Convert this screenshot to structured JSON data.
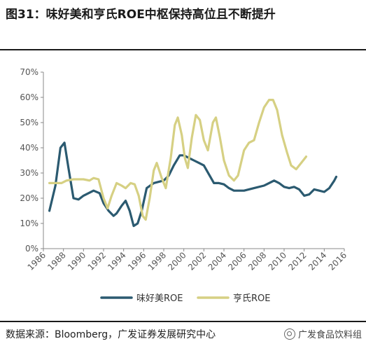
{
  "figure": {
    "title": "图31：味好美和亨氏ROE中枢保持高位且不断提升",
    "source": "数据来源：Bloomberg，广发证券发展研究中心",
    "watermark": "广发食品饮料组",
    "watermark_icon": "wechat-icon"
  },
  "chart_data": {
    "type": "line",
    "x_ticks": [
      "1986",
      "1988",
      "1990",
      "1992",
      "1994",
      "1996",
      "1998",
      "2000",
      "2002",
      "2004",
      "2006",
      "2008",
      "2010",
      "2012",
      "2014",
      "2016"
    ],
    "y_ticks": [
      "0%",
      "10%",
      "20%",
      "30%",
      "40%",
      "50%",
      "60%",
      "70%"
    ],
    "xlim": [
      1986,
      2016
    ],
    "ylim": [
      0,
      70
    ],
    "grid": false,
    "legend_position": "bottom",
    "series": [
      {
        "name": "味好美ROE",
        "color": "#2b5a70",
        "points": [
          [
            1986.6,
            15
          ],
          [
            1987.2,
            25
          ],
          [
            1987.7,
            40
          ],
          [
            1988.1,
            42
          ],
          [
            1988.5,
            32
          ],
          [
            1989.0,
            20
          ],
          [
            1989.5,
            19.5
          ],
          [
            1990.0,
            21
          ],
          [
            1991.0,
            23
          ],
          [
            1991.6,
            22
          ],
          [
            1992.0,
            18
          ],
          [
            1992.5,
            15
          ],
          [
            1993.0,
            13
          ],
          [
            1993.3,
            14
          ],
          [
            1993.8,
            17
          ],
          [
            1994.2,
            19
          ],
          [
            1994.6,
            15
          ],
          [
            1995.0,
            9
          ],
          [
            1995.4,
            10
          ],
          [
            1995.8,
            15
          ],
          [
            1996.3,
            24
          ],
          [
            1997.0,
            26
          ],
          [
            1997.5,
            26.5
          ],
          [
            1998.0,
            27
          ],
          [
            1998.5,
            29
          ],
          [
            1999.0,
            33
          ],
          [
            1999.6,
            37
          ],
          [
            2000.0,
            37
          ],
          [
            2000.5,
            36
          ],
          [
            2001.0,
            35
          ],
          [
            2001.5,
            34
          ],
          [
            2002.0,
            33
          ],
          [
            2002.5,
            29.5
          ],
          [
            2003.0,
            26
          ],
          [
            2003.5,
            26
          ],
          [
            2004.0,
            25.5
          ],
          [
            2004.5,
            24
          ],
          [
            2005.0,
            23
          ],
          [
            2006.0,
            23
          ],
          [
            2007.0,
            24
          ],
          [
            2008.0,
            25
          ],
          [
            2009.0,
            27
          ],
          [
            2009.5,
            26
          ],
          [
            2010.0,
            24.5
          ],
          [
            2010.5,
            24
          ],
          [
            2011.0,
            24.5
          ],
          [
            2011.5,
            23.5
          ],
          [
            2012.0,
            21
          ],
          [
            2012.5,
            21.5
          ],
          [
            2013.0,
            23.5
          ],
          [
            2013.5,
            23
          ],
          [
            2014.0,
            22.5
          ],
          [
            2014.5,
            24
          ],
          [
            2015.0,
            27
          ],
          [
            2015.2,
            28.5
          ]
        ]
      },
      {
        "name": "亨氏ROE",
        "color": "#d6d083",
        "points": [
          [
            1986.6,
            26
          ],
          [
            1987.2,
            26
          ],
          [
            1987.8,
            26
          ],
          [
            1988.3,
            27
          ],
          [
            1989.0,
            27.5
          ],
          [
            1990.0,
            27.5
          ],
          [
            1990.6,
            27
          ],
          [
            1991.0,
            28
          ],
          [
            1991.5,
            27.5
          ],
          [
            1992.0,
            20
          ],
          [
            1992.4,
            16
          ],
          [
            1992.8,
            21
          ],
          [
            1993.3,
            26
          ],
          [
            1993.8,
            25
          ],
          [
            1994.2,
            24
          ],
          [
            1994.7,
            26
          ],
          [
            1995.1,
            25.5
          ],
          [
            1995.5,
            21
          ],
          [
            1995.9,
            13
          ],
          [
            1996.2,
            11.5
          ],
          [
            1996.6,
            20
          ],
          [
            1997.0,
            31
          ],
          [
            1997.3,
            34
          ],
          [
            1997.8,
            28
          ],
          [
            1998.2,
            24
          ],
          [
            1998.7,
            36
          ],
          [
            1999.1,
            49
          ],
          [
            1999.4,
            52
          ],
          [
            1999.8,
            45
          ],
          [
            2000.1,
            36
          ],
          [
            2000.4,
            32
          ],
          [
            2000.8,
            44
          ],
          [
            2001.2,
            53
          ],
          [
            2001.6,
            51
          ],
          [
            2002.0,
            43
          ],
          [
            2002.4,
            39
          ],
          [
            2002.9,
            50
          ],
          [
            2003.2,
            52
          ],
          [
            2003.6,
            44
          ],
          [
            2004.0,
            35
          ],
          [
            2004.5,
            29
          ],
          [
            2005.0,
            27
          ],
          [
            2005.4,
            29
          ],
          [
            2006.0,
            39
          ],
          [
            2006.5,
            42
          ],
          [
            2007.0,
            43
          ],
          [
            2007.5,
            50
          ],
          [
            2008.0,
            56
          ],
          [
            2008.5,
            59
          ],
          [
            2008.9,
            59
          ],
          [
            2009.3,
            55
          ],
          [
            2009.8,
            45
          ],
          [
            2010.3,
            38
          ],
          [
            2010.7,
            33
          ],
          [
            2011.2,
            31.5
          ],
          [
            2011.7,
            34
          ],
          [
            2012.2,
            36.5
          ]
        ]
      }
    ]
  }
}
